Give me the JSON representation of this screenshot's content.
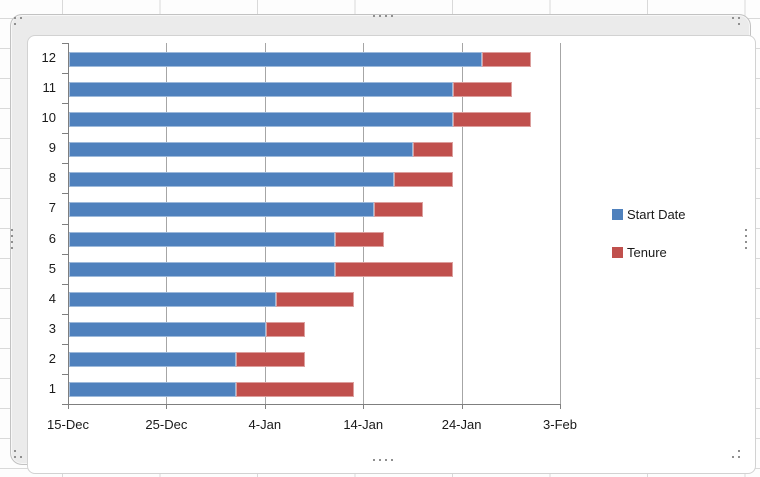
{
  "app": {
    "context_label": "Excel worksheet with embedded chart (selected)"
  },
  "chart_data": {
    "type": "bar",
    "subtype": "horizontal-stacked-gantt",
    "title": "",
    "categories": [
      "1",
      "2",
      "3",
      "4",
      "5",
      "6",
      "7",
      "8",
      "9",
      "10",
      "11",
      "12"
    ],
    "category_order_on_screen_top_to_bottom": [
      "12",
      "11",
      "10",
      "9",
      "8",
      "7",
      "6",
      "5",
      "4",
      "3",
      "2",
      "1"
    ],
    "series": [
      {
        "name": "Start Date",
        "color": "#4F81BD",
        "start_dates": [
          "1-Jan",
          "1-Jan",
          "4-Jan",
          "5-Jan",
          "11-Jan",
          "11-Jan",
          "15-Jan",
          "17-Jan",
          "19-Jan",
          "23-Jan",
          "23-Jan",
          "26-Jan"
        ],
        "days_from_axis_min": [
          17,
          17,
          20,
          21,
          27,
          27,
          31,
          33,
          35,
          39,
          39,
          42
        ]
      },
      {
        "name": "Tenure",
        "color": "#C0504D",
        "duration_days": [
          12,
          7,
          4,
          8,
          12,
          5,
          5,
          6,
          4,
          8,
          6,
          5
        ],
        "end_dates": [
          "13-Jan",
          "8-Jan",
          "8-Jan",
          "13-Jan",
          "23-Jan",
          "16-Jan",
          "20-Jan",
          "23-Jan",
          "23-Jan",
          "31-Jan",
          "29-Jan",
          "31-Jan"
        ]
      }
    ],
    "x_axis": {
      "tick_labels": [
        "15-Dec",
        "25-Dec",
        "4-Jan",
        "14-Jan",
        "24-Jan",
        "3-Feb"
      ],
      "min_label": "15-Dec",
      "max_label": "3-Feb",
      "interval_days": 10,
      "total_days": 50,
      "major_gridlines": true
    },
    "y_axis": {
      "tick_labels": [
        "1",
        "2",
        "3",
        "4",
        "5",
        "6",
        "7",
        "8",
        "9",
        "10",
        "11",
        "12"
      ],
      "major_gridlines": false
    },
    "legend": {
      "position": "right",
      "entries": [
        {
          "label": "Start Date",
          "color": "#4F81BD"
        },
        {
          "label": "Tenure",
          "color": "#C0504D"
        }
      ]
    },
    "colors": {
      "gridline": "#A6A6A6",
      "axis_line": "#7F7F7F",
      "axis_text": "#1A1A1A",
      "chart_background": "#FFFFFF"
    }
  }
}
